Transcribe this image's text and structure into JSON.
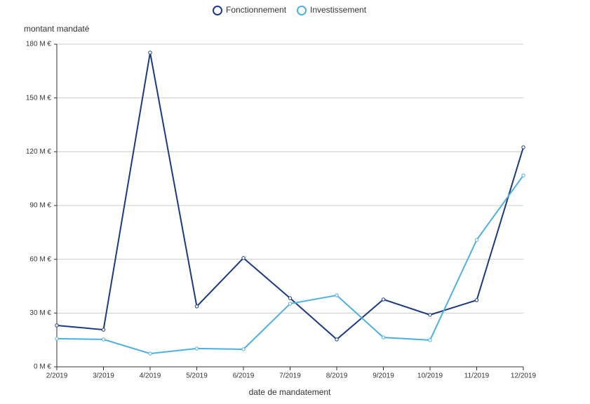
{
  "chart_data": {
    "type": "line",
    "x_label": "date de mandatement",
    "y_label": "montant mandaté",
    "categories": [
      "2/2019",
      "3/2019",
      "4/2019",
      "5/2019",
      "6/2019",
      "7/2019",
      "8/2019",
      "9/2019",
      "10/2019",
      "11/2019",
      "12/2019"
    ],
    "series": [
      {
        "name": "Fonctionnement",
        "color": "#1b3a80",
        "values": [
          23.1,
          20.7,
          175.3,
          33.7,
          60.7,
          38.3,
          15.3,
          37.6,
          29.0,
          37.2,
          122.5
        ]
      },
      {
        "name": "Investissement",
        "color": "#4fb0e0",
        "values": [
          15.7,
          15.3,
          7.4,
          10.2,
          9.8,
          35.2,
          39.9,
          16.4,
          14.9,
          70.8,
          106.8
        ]
      }
    ],
    "ylim": [
      0,
      180
    ],
    "yticks": [
      {
        "value": 0,
        "label": "0 M €"
      },
      {
        "value": 30,
        "label": "30 M €"
      },
      {
        "value": 60,
        "label": "60 M €"
      },
      {
        "value": 90,
        "label": "90 M €"
      },
      {
        "value": 120,
        "label": "120 M €"
      },
      {
        "value": 150,
        "label": "150 M €"
      },
      {
        "value": 180,
        "label": "180 M €"
      }
    ],
    "grid": true
  }
}
